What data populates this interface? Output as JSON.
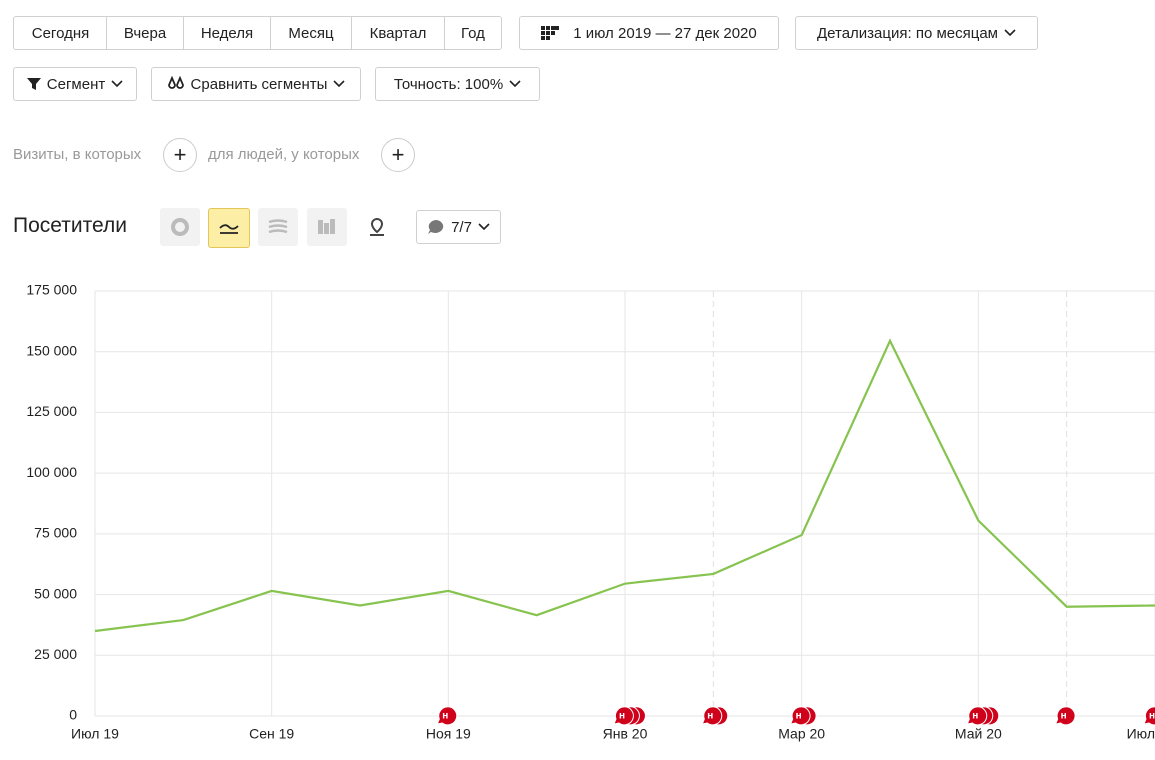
{
  "toolbar": {
    "periods": [
      "Сегодня",
      "Вчера",
      "Неделя",
      "Месяц",
      "Квартал",
      "Год"
    ],
    "date_range": "1 июл 2019 — 27 дек 2020",
    "detail": "Детализация: по месяцам",
    "segment": "Сегмент",
    "compare": "Сравнить сегменты",
    "accuracy": "Точность: 100%"
  },
  "filters": {
    "visits": "Визиты, в которых",
    "people": "для людей, у которых"
  },
  "notes_button": "7/7",
  "chart_data": {
    "type": "line",
    "title": "Посетители",
    "categories": [
      "Июл 19",
      null,
      "Сен 19",
      null,
      "Ноя 19",
      null,
      "Янв 20",
      null,
      "Мар 20",
      null,
      "Май 20",
      null,
      "Июл"
    ],
    "values": [
      35000,
      39500,
      51500,
      45500,
      51500,
      41500,
      54500,
      58500,
      74500,
      154500,
      80500,
      45000,
      45500
    ],
    "color": "#86c34f",
    "ylim": [
      0,
      175000
    ],
    "yticks": [
      0,
      {
        "value": 25000,
        "label": "25 000"
      },
      {
        "value": 50000,
        "label": "50 000"
      },
      {
        "value": 75000,
        "label": "75 000"
      },
      {
        "value": 100000,
        "label": "100 000"
      },
      {
        "value": 125000,
        "label": "125 000"
      },
      {
        "value": 150000,
        "label": "150 000"
      },
      {
        "value": 175000,
        "label": "175 000"
      }
    ],
    "grid": true,
    "note_markers": {
      "label": "н",
      "color": "#d0021b",
      "groups": [
        {
          "index": 4,
          "count": 1
        },
        {
          "index": 6,
          "count": 3
        },
        {
          "index": 7,
          "count": 2
        },
        {
          "index": 8,
          "count": 2
        },
        {
          "index": 10,
          "count": 3
        },
        {
          "index": 11,
          "count": 1
        },
        {
          "index": 12,
          "count": 1
        }
      ]
    }
  }
}
